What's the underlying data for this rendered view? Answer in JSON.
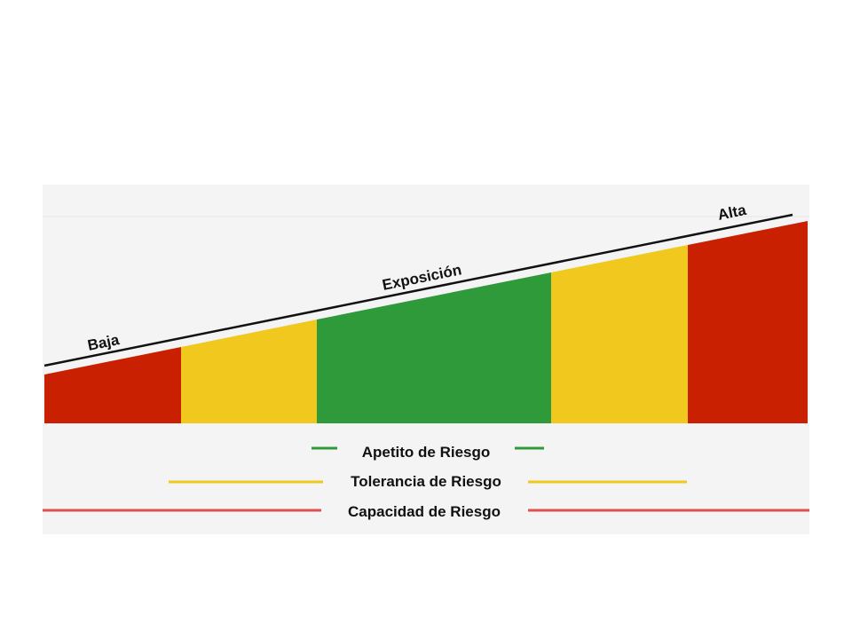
{
  "diagram": {
    "exposure_axis": {
      "low_label": "Baja",
      "mid_label": "Exposición",
      "high_label": "Alta"
    },
    "zones": [
      {
        "id": "capacity-left",
        "color": "#c82000",
        "level": "capacidad"
      },
      {
        "id": "tolerance-left",
        "color": "#f0c81e",
        "level": "tolerancia"
      },
      {
        "id": "appetite",
        "color": "#2f9a3a",
        "level": "apetito"
      },
      {
        "id": "tolerance-right",
        "color": "#f0c81e",
        "level": "tolerancia"
      },
      {
        "id": "capacity-right",
        "color": "#c82000",
        "level": "capacidad"
      }
    ]
  },
  "legend": [
    {
      "label": "Apetito de Riesgo",
      "color": "#2f9a3a"
    },
    {
      "label": "Tolerancia de Riesgo",
      "color": "#f0c81e"
    },
    {
      "label": "Capacidad de Riesgo",
      "color": "#e05050"
    }
  ]
}
